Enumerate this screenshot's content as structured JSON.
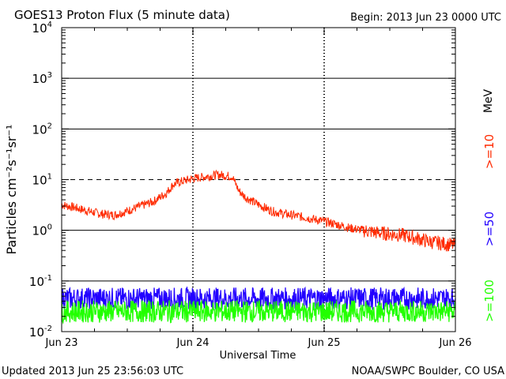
{
  "chart_data": {
    "type": "line",
    "title": "GOES13 Proton Flux (5 minute data)",
    "begin_label": "Begin: 2013 Jun 23 0000 UTC",
    "xlabel": "Universal Time",
    "ylabel": "Particles cm⁻²s⁻¹sr⁻¹",
    "x_unit": "days since 2013 Jun 23 0000 UTC",
    "xlim": [
      0,
      3
    ],
    "ylim": [
      0.01,
      10000
    ],
    "yscale": "log",
    "x_ticks": [
      {
        "value": 0,
        "label": "Jun 23"
      },
      {
        "value": 1,
        "label": "Jun 24"
      },
      {
        "value": 2,
        "label": "Jun 25"
      },
      {
        "value": 3,
        "label": "Jun 26"
      }
    ],
    "y_ticks": [
      {
        "value": 0.01,
        "base": "10",
        "exp": "-2"
      },
      {
        "value": 0.1,
        "base": "10",
        "exp": "-1"
      },
      {
        "value": 1,
        "base": "10",
        "exp": "0"
      },
      {
        "value": 10,
        "base": "10",
        "exp": "1"
      },
      {
        "value": 100,
        "base": "10",
        "exp": "2"
      },
      {
        "value": 1000,
        "base": "10",
        "exp": "3"
      },
      {
        "value": 10000,
        "base": "10",
        "exp": "4"
      }
    ],
    "threshold_lines": [
      {
        "value": 10,
        "style": "dashed"
      },
      {
        "value": 1000,
        "style": "solid"
      },
      {
        "value": 100,
        "style": "solid"
      },
      {
        "value": 1,
        "style": "solid"
      },
      {
        "value": 0.1,
        "style": "solid"
      }
    ],
    "energy_unit": "MeV",
    "series": [
      {
        "name": ">=10",
        "color": "#ff2a00",
        "x": [
          0,
          0.1,
          0.2,
          0.3,
          0.4,
          0.5,
          0.6,
          0.7,
          0.8,
          0.85,
          0.9,
          1.0,
          1.1,
          1.2,
          1.3,
          1.35,
          1.4,
          1.5,
          1.6,
          1.7,
          1.8,
          1.9,
          2.0,
          2.1,
          2.2,
          2.3,
          2.4,
          2.5,
          2.6,
          2.7,
          2.8,
          2.9,
          3.0
        ],
        "values": [
          3.2,
          2.8,
          2.4,
          2.1,
          2.0,
          2.4,
          3.0,
          3.7,
          5.5,
          8.0,
          9.0,
          10.5,
          11.5,
          12.5,
          11.5,
          6.0,
          4.5,
          3.2,
          2.4,
          2.1,
          1.9,
          1.7,
          1.5,
          1.3,
          1.1,
          1.0,
          0.9,
          0.85,
          0.8,
          0.7,
          0.6,
          0.55,
          0.5
        ]
      },
      {
        "name": ">=50",
        "color": "#2200ff",
        "x": [
          0,
          0.25,
          0.5,
          0.75,
          1.0,
          1.25,
          1.5,
          1.75,
          2.0,
          2.25,
          2.5,
          2.75,
          3.0
        ],
        "values": [
          0.045,
          0.045,
          0.045,
          0.045,
          0.045,
          0.045,
          0.045,
          0.045,
          0.045,
          0.045,
          0.045,
          0.045,
          0.045
        ]
      },
      {
        "name": ">=100",
        "color": "#22ff00",
        "x": [
          0,
          0.25,
          0.5,
          0.75,
          1.0,
          1.25,
          1.5,
          1.75,
          2.0,
          2.25,
          2.5,
          2.75,
          3.0
        ],
        "values": [
          0.025,
          0.025,
          0.025,
          0.025,
          0.025,
          0.025,
          0.025,
          0.025,
          0.025,
          0.025,
          0.025,
          0.025,
          0.025
        ]
      }
    ]
  },
  "footer": {
    "updated": "Updated 2013 Jun 25 23:56:03 UTC",
    "credit": "NOAA/SWPC Boulder, CO USA"
  }
}
